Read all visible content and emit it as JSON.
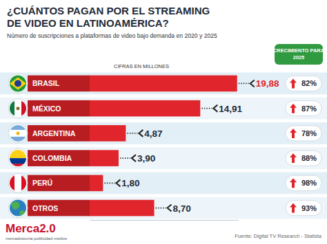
{
  "chart_data": {
    "type": "bar",
    "orientation": "horizontal",
    "title": "¿CUÁNTOS PAGAN POR EL STREAMING DE VIDEO EN LATINOAMÉRICA?",
    "subtitle": "Número de suscripciones a plataformas de video bajo demanda en 2020 y 2025",
    "units_note": "CIFRAS EN MILLONES",
    "growth_title": "CRECIMIENTO PARA 2025",
    "categories": [
      "BRASIL",
      "MÉXICO",
      "ARGENTINA",
      "COLOMBIA",
      "PERÚ",
      "OTROS"
    ],
    "values": [
      19.88,
      14.91,
      4.87,
      3.9,
      1.8,
      8.7
    ],
    "value_labels": [
      "19,88",
      "14,91",
      "4,87",
      "3,90",
      "1,80",
      "8,70"
    ],
    "growth": [
      82,
      87,
      78,
      88,
      98,
      93
    ],
    "growth_labels": [
      "82%",
      "87%",
      "78%",
      "88%",
      "98%",
      "93%"
    ],
    "color": "#e0262c",
    "xlim": [
      0,
      20
    ],
    "data_labels": true,
    "tick_labels": false,
    "grid": false,
    "source": "Fuente: Digital TV Research - Statista",
    "logo": "Merca2.0",
    "logo_tagline": "mercadotecnia publicidad medios"
  }
}
